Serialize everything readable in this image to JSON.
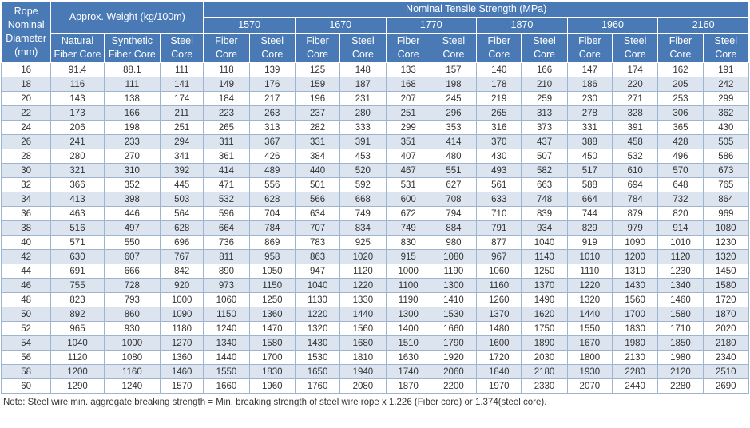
{
  "headers": {
    "rope_diameter": "Rope Nominal Diameter (mm)",
    "approx_weight": "Approx. Weight (kg/100m)",
    "nominal_tensile": "Nominal Tensile Strength  (MPa)",
    "weight_cols": [
      "Natural Fiber Core",
      "Synthetic Fiber Core",
      "Steel Core"
    ],
    "strengths": [
      "1570",
      "1670",
      "1770",
      "1870",
      "1960",
      "2160"
    ],
    "core_types": [
      "Fiber Core",
      "Steel Core"
    ]
  },
  "rows": [
    [
      "16",
      "91.4",
      "88.1",
      "111",
      "118",
      "139",
      "125",
      "148",
      "133",
      "157",
      "140",
      "166",
      "147",
      "174",
      "162",
      "191"
    ],
    [
      "18",
      "116",
      "111",
      "141",
      "149",
      "176",
      "159",
      "187",
      "168",
      "198",
      "178",
      "210",
      "186",
      "220",
      "205",
      "242"
    ],
    [
      "20",
      "143",
      "138",
      "174",
      "184",
      "217",
      "196",
      "231",
      "207",
      "245",
      "219",
      "259",
      "230",
      "271",
      "253",
      "299"
    ],
    [
      "22",
      "173",
      "166",
      "211",
      "223",
      "263",
      "237",
      "280",
      "251",
      "296",
      "265",
      "313",
      "278",
      "328",
      "306",
      "362"
    ],
    [
      "24",
      "206",
      "198",
      "251",
      "265",
      "313",
      "282",
      "333",
      "299",
      "353",
      "316",
      "373",
      "331",
      "391",
      "365",
      "430"
    ],
    [
      "26",
      "241",
      "233",
      "294",
      "311",
      "367",
      "331",
      "391",
      "351",
      "414",
      "370",
      "437",
      "388",
      "458",
      "428",
      "505"
    ],
    [
      "28",
      "280",
      "270",
      "341",
      "361",
      "426",
      "384",
      "453",
      "407",
      "480",
      "430",
      "507",
      "450",
      "532",
      "496",
      "586"
    ],
    [
      "30",
      "321",
      "310",
      "392",
      "414",
      "489",
      "440",
      "520",
      "467",
      "551",
      "493",
      "582",
      "517",
      "610",
      "570",
      "673"
    ],
    [
      "32",
      "366",
      "352",
      "445",
      "471",
      "556",
      "501",
      "592",
      "531",
      "627",
      "561",
      "663",
      "588",
      "694",
      "648",
      "765"
    ],
    [
      "34",
      "413",
      "398",
      "503",
      "532",
      "628",
      "566",
      "668",
      "600",
      "708",
      "633",
      "748",
      "664",
      "784",
      "732",
      "864"
    ],
    [
      "36",
      "463",
      "446",
      "564",
      "596",
      "704",
      "634",
      "749",
      "672",
      "794",
      "710",
      "839",
      "744",
      "879",
      "820",
      "969"
    ],
    [
      "38",
      "516",
      "497",
      "628",
      "664",
      "784",
      "707",
      "834",
      "749",
      "884",
      "791",
      "934",
      "829",
      "979",
      "914",
      "1080"
    ],
    [
      "40",
      "571",
      "550",
      "696",
      "736",
      "869",
      "783",
      "925",
      "830",
      "980",
      "877",
      "1040",
      "919",
      "1090",
      "1010",
      "1230"
    ],
    [
      "42",
      "630",
      "607",
      "767",
      "811",
      "958",
      "863",
      "1020",
      "915",
      "1080",
      "967",
      "1140",
      "1010",
      "1200",
      "1120",
      "1320"
    ],
    [
      "44",
      "691",
      "666",
      "842",
      "890",
      "1050",
      "947",
      "1120",
      "1000",
      "1190",
      "1060",
      "1250",
      "1110",
      "1310",
      "1230",
      "1450"
    ],
    [
      "46",
      "755",
      "728",
      "920",
      "973",
      "1150",
      "1040",
      "1220",
      "1100",
      "1300",
      "1160",
      "1370",
      "1220",
      "1430",
      "1340",
      "1580"
    ],
    [
      "48",
      "823",
      "793",
      "1000",
      "1060",
      "1250",
      "1130",
      "1330",
      "1190",
      "1410",
      "1260",
      "1490",
      "1320",
      "1560",
      "1460",
      "1720"
    ],
    [
      "50",
      "892",
      "860",
      "1090",
      "1150",
      "1360",
      "1220",
      "1440",
      "1300",
      "1530",
      "1370",
      "1620",
      "1440",
      "1700",
      "1580",
      "1870"
    ],
    [
      "52",
      "965",
      "930",
      "1180",
      "1240",
      "1470",
      "1320",
      "1560",
      "1400",
      "1660",
      "1480",
      "1750",
      "1550",
      "1830",
      "1710",
      "2020"
    ],
    [
      "54",
      "1040",
      "1000",
      "1270",
      "1340",
      "1580",
      "1430",
      "1680",
      "1510",
      "1790",
      "1600",
      "1890",
      "1670",
      "1980",
      "1850",
      "2180"
    ],
    [
      "56",
      "1120",
      "1080",
      "1360",
      "1440",
      "1700",
      "1530",
      "1810",
      "1630",
      "1920",
      "1720",
      "2030",
      "1800",
      "2130",
      "1980",
      "2340"
    ],
    [
      "58",
      "1200",
      "1160",
      "1460",
      "1550",
      "1830",
      "1650",
      "1940",
      "1740",
      "2060",
      "1840",
      "2180",
      "1930",
      "2280",
      "2120",
      "2510"
    ],
    [
      "60",
      "1290",
      "1240",
      "1570",
      "1660",
      "1960",
      "1760",
      "2080",
      "1870",
      "2200",
      "1970",
      "2330",
      "2070",
      "2440",
      "2280",
      "2690"
    ]
  ],
  "note": "Note: Steel wire min. aggregate breaking strength = Min. breaking strength of steel wire rope x 1.226 (Fiber core) or 1.374(steel core).",
  "colors": {
    "header_bg": "#4a7ab6",
    "row_alt_bg": "#dbe4ef",
    "row_bg": "#ffffff"
  }
}
